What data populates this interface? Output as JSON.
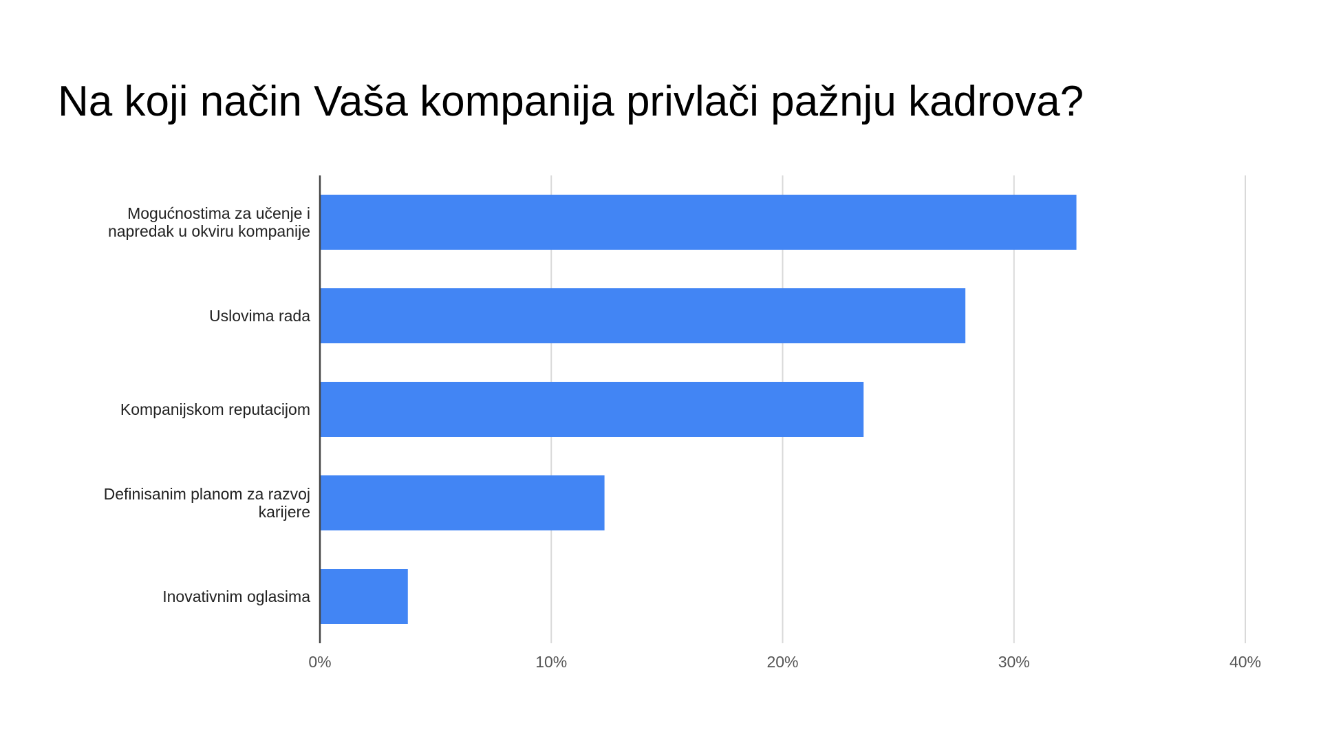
{
  "chart_data": {
    "type": "bar",
    "orientation": "horizontal",
    "title": "Na koji način Vaša kompanija privlači pažnju kadrova?",
    "categories": [
      [
        "Mogućnostima za učenje i",
        "napredak u okviru kompanije"
      ],
      [
        "Uslovima rada"
      ],
      [
        "Kompanijskom reputacijom"
      ],
      [
        "Definisanim planom za razvoj",
        "karijere"
      ],
      [
        "Inovativnim oglasima"
      ]
    ],
    "values": [
      32.7,
      27.9,
      23.5,
      12.3,
      3.8
    ],
    "unit": "%",
    "xlim": [
      0,
      40
    ],
    "xticks": [
      0,
      10,
      20,
      30,
      40
    ],
    "xtick_labels": [
      "0%",
      "10%",
      "20%",
      "30%",
      "40%"
    ],
    "grid": true,
    "legend": "none",
    "colors": {
      "bar": "#4285F4",
      "grid": "#D9D9D9",
      "axis": "#444444",
      "label": "#222222",
      "tick": "#555555"
    }
  }
}
